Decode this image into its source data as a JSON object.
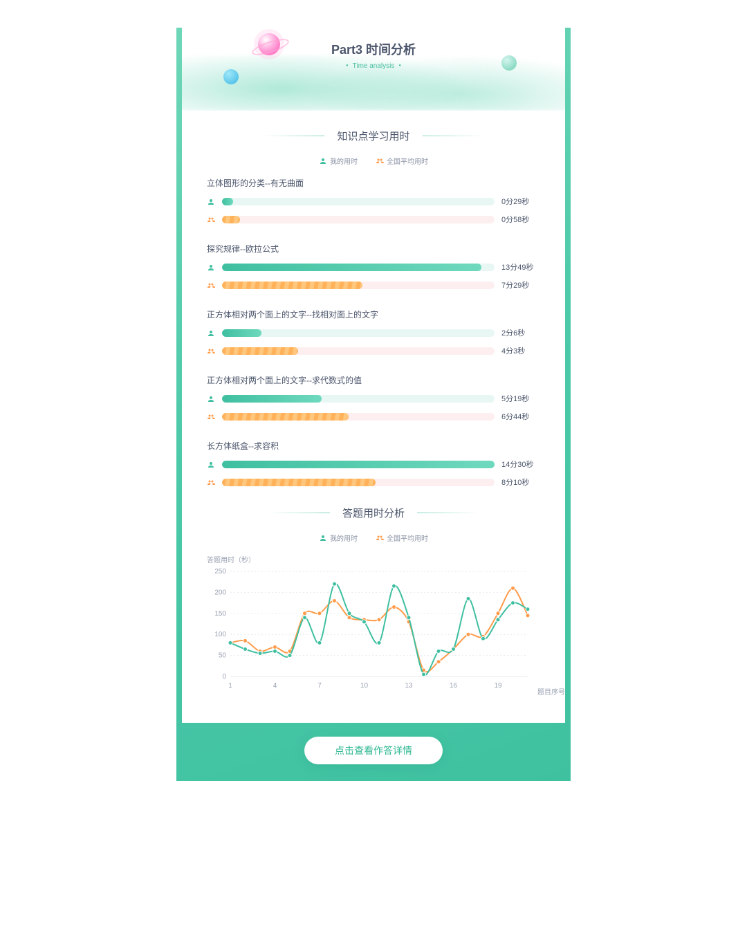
{
  "colors": {
    "frame_grad_start": "#6ed7b8",
    "frame_grad_end": "#3fc1a0",
    "me": "#3fbfa0",
    "me_light": "#6fd9be",
    "me_track": "#e8f7f3",
    "avg": "#ff9b4a",
    "avg_light": "#ffc77d",
    "avg_track": "#fdeff0",
    "text_primary": "#4a546a",
    "text_muted": "#9aa2b3",
    "grid": "#e7e9ee"
  },
  "hero": {
    "title": "Part3 时间分析",
    "subtitle": "Time analysis"
  },
  "legend": {
    "me": "我的用时",
    "avg": "全国平均用时"
  },
  "section1": {
    "title": "知识点学习用时",
    "max_seconds": 870,
    "items": [
      {
        "name": "立体图形的分类--有无曲面",
        "me_sec": 29,
        "avg_sec": 58,
        "me_txt": "0分29秒",
        "avg_txt": "0分58秒"
      },
      {
        "name": "探究规律--欧拉公式",
        "me_sec": 829,
        "avg_sec": 449,
        "me_txt": "13分49秒",
        "avg_txt": "7分29秒"
      },
      {
        "name": "正方体相对两个面上的文字--找相对面上的文字",
        "me_sec": 126,
        "avg_sec": 243,
        "me_txt": "2分6秒",
        "avg_txt": "4分3秒"
      },
      {
        "name": "正方体相对两个面上的文字--求代数式的值",
        "me_sec": 319,
        "avg_sec": 404,
        "me_txt": "5分19秒",
        "avg_txt": "6分44秒"
      },
      {
        "name": "长方体纸盒--求容积",
        "me_sec": 870,
        "avg_sec": 490,
        "me_txt": "14分30秒",
        "avg_txt": "8分10秒"
      }
    ]
  },
  "section2": {
    "title": "答题用时分析",
    "chart": {
      "type": "line",
      "y_label": "答题用时（秒）",
      "x_label": "题目序号",
      "ylim": [
        0,
        250
      ],
      "ytick_step": 50,
      "x_count": 21,
      "x_ticks": [
        1,
        4,
        7,
        10,
        13,
        16,
        19
      ],
      "background": "#ffffff",
      "grid_color": "#e7e9ee",
      "line_width": 2,
      "marker_radius": 3,
      "label_fontsize": 10,
      "series": {
        "me": {
          "color": "#3fbfa0",
          "values": [
            80,
            65,
            55,
            60,
            50,
            140,
            80,
            220,
            150,
            130,
            80,
            215,
            140,
            5,
            60,
            65,
            185,
            90,
            135,
            175,
            160
          ]
        },
        "avg": {
          "color": "#ff9b4a",
          "values": [
            80,
            85,
            60,
            70,
            60,
            150,
            150,
            180,
            140,
            135,
            135,
            165,
            130,
            15,
            35,
            65,
            100,
            95,
            150,
            210,
            145
          ]
        }
      }
    }
  },
  "footer": {
    "button_label": "点击查看作答详情"
  }
}
